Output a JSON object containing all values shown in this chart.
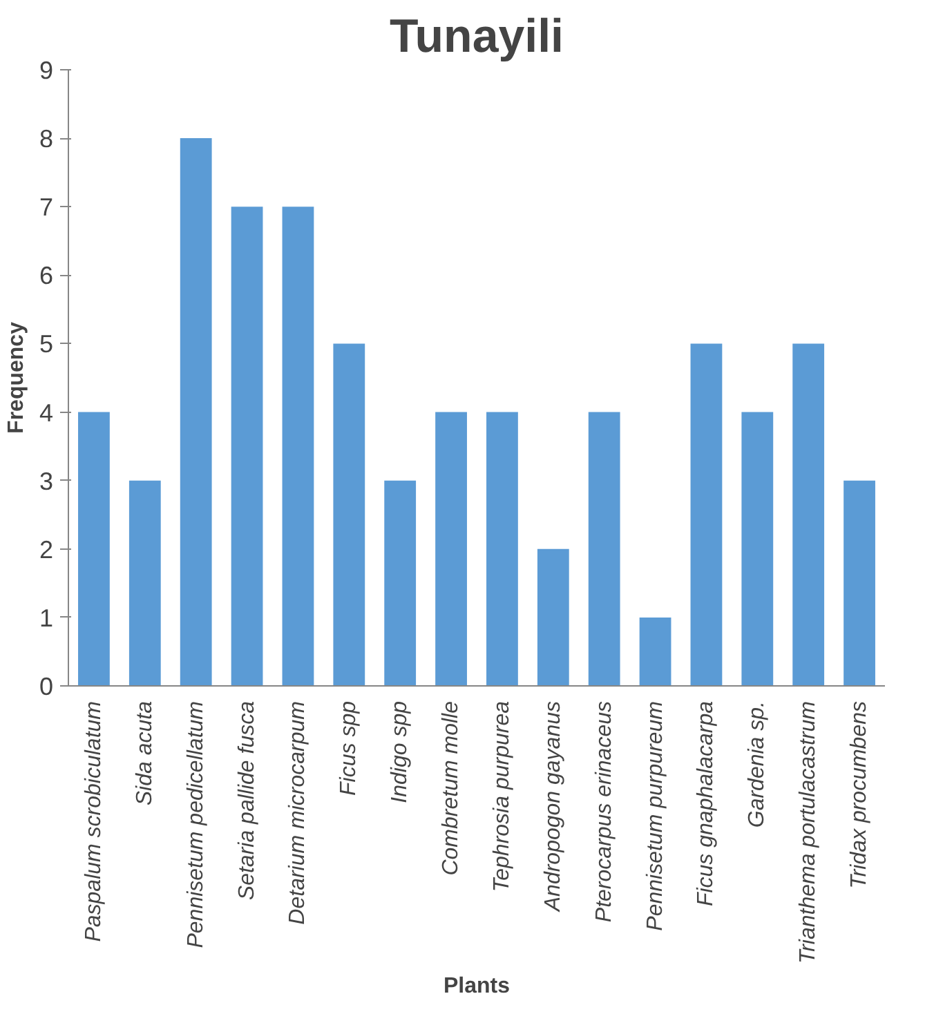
{
  "chart_data": {
    "type": "bar",
    "title": "Tunayili",
    "xlabel": "Plants",
    "ylabel": "Frequency",
    "categories": [
      "Paspalum scrobiculatum",
      "Sida acuta",
      "Pennisetum pedicellatum",
      "Setaria pallide fusca",
      "Detarium microcarpum",
      "Ficus spp",
      "Indigo spp",
      "Combretum molle",
      "Tephrosia purpurea",
      "Andropogon gayanus",
      "Pterocarpus erinaceus",
      "Pennisetum purpureum",
      "Ficus gnaphalacarpa",
      "Gardenia sp.",
      "Trianthema portulacastrum",
      "Tridax procumbens"
    ],
    "values": [
      4,
      3,
      8,
      7,
      7,
      5,
      3,
      4,
      4,
      2,
      4,
      1,
      5,
      4,
      5,
      3
    ],
    "color": "#5b9bd5",
    "ylim": [
      0,
      9
    ],
    "yticks": [
      0,
      1,
      2,
      3,
      4,
      5,
      6,
      7,
      8,
      9
    ],
    "grid": false
  }
}
